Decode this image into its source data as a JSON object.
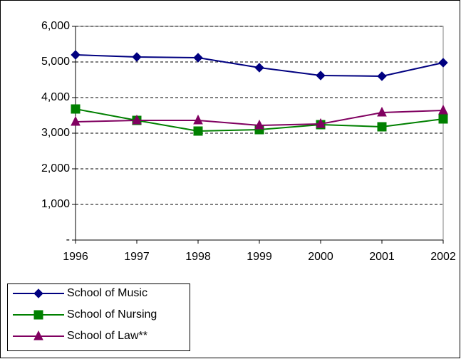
{
  "chart_data": {
    "type": "line",
    "categories": [
      "1996",
      "1997",
      "1998",
      "1999",
      "2000",
      "2001",
      "2002"
    ],
    "series": [
      {
        "name": "School of Music",
        "color": "#000080",
        "marker": "diamond",
        "values": [
          5200,
          5140,
          5120,
          4840,
          4620,
          4600,
          4980
        ]
      },
      {
        "name": "School of Nursing",
        "color": "#008000",
        "marker": "square",
        "values": [
          3680,
          3360,
          3060,
          3100,
          3240,
          3180,
          3400
        ]
      },
      {
        "name": "School of Law**",
        "color": "#800060",
        "marker": "triangle",
        "values": [
          3320,
          3360,
          3360,
          3220,
          3260,
          3580,
          3640
        ]
      }
    ],
    "ylim": [
      0,
      6000
    ],
    "yticks": [
      {
        "value": 0,
        "label": "-"
      },
      {
        "value": 1000,
        "label": "1,000"
      },
      {
        "value": 2000,
        "label": "2,000"
      },
      {
        "value": 3000,
        "label": "3,000"
      },
      {
        "value": 4000,
        "label": "4,000"
      },
      {
        "value": 5000,
        "label": "5,000"
      },
      {
        "value": 6000,
        "label": "6,000"
      }
    ],
    "grid": true,
    "legend": "bottom-left"
  }
}
